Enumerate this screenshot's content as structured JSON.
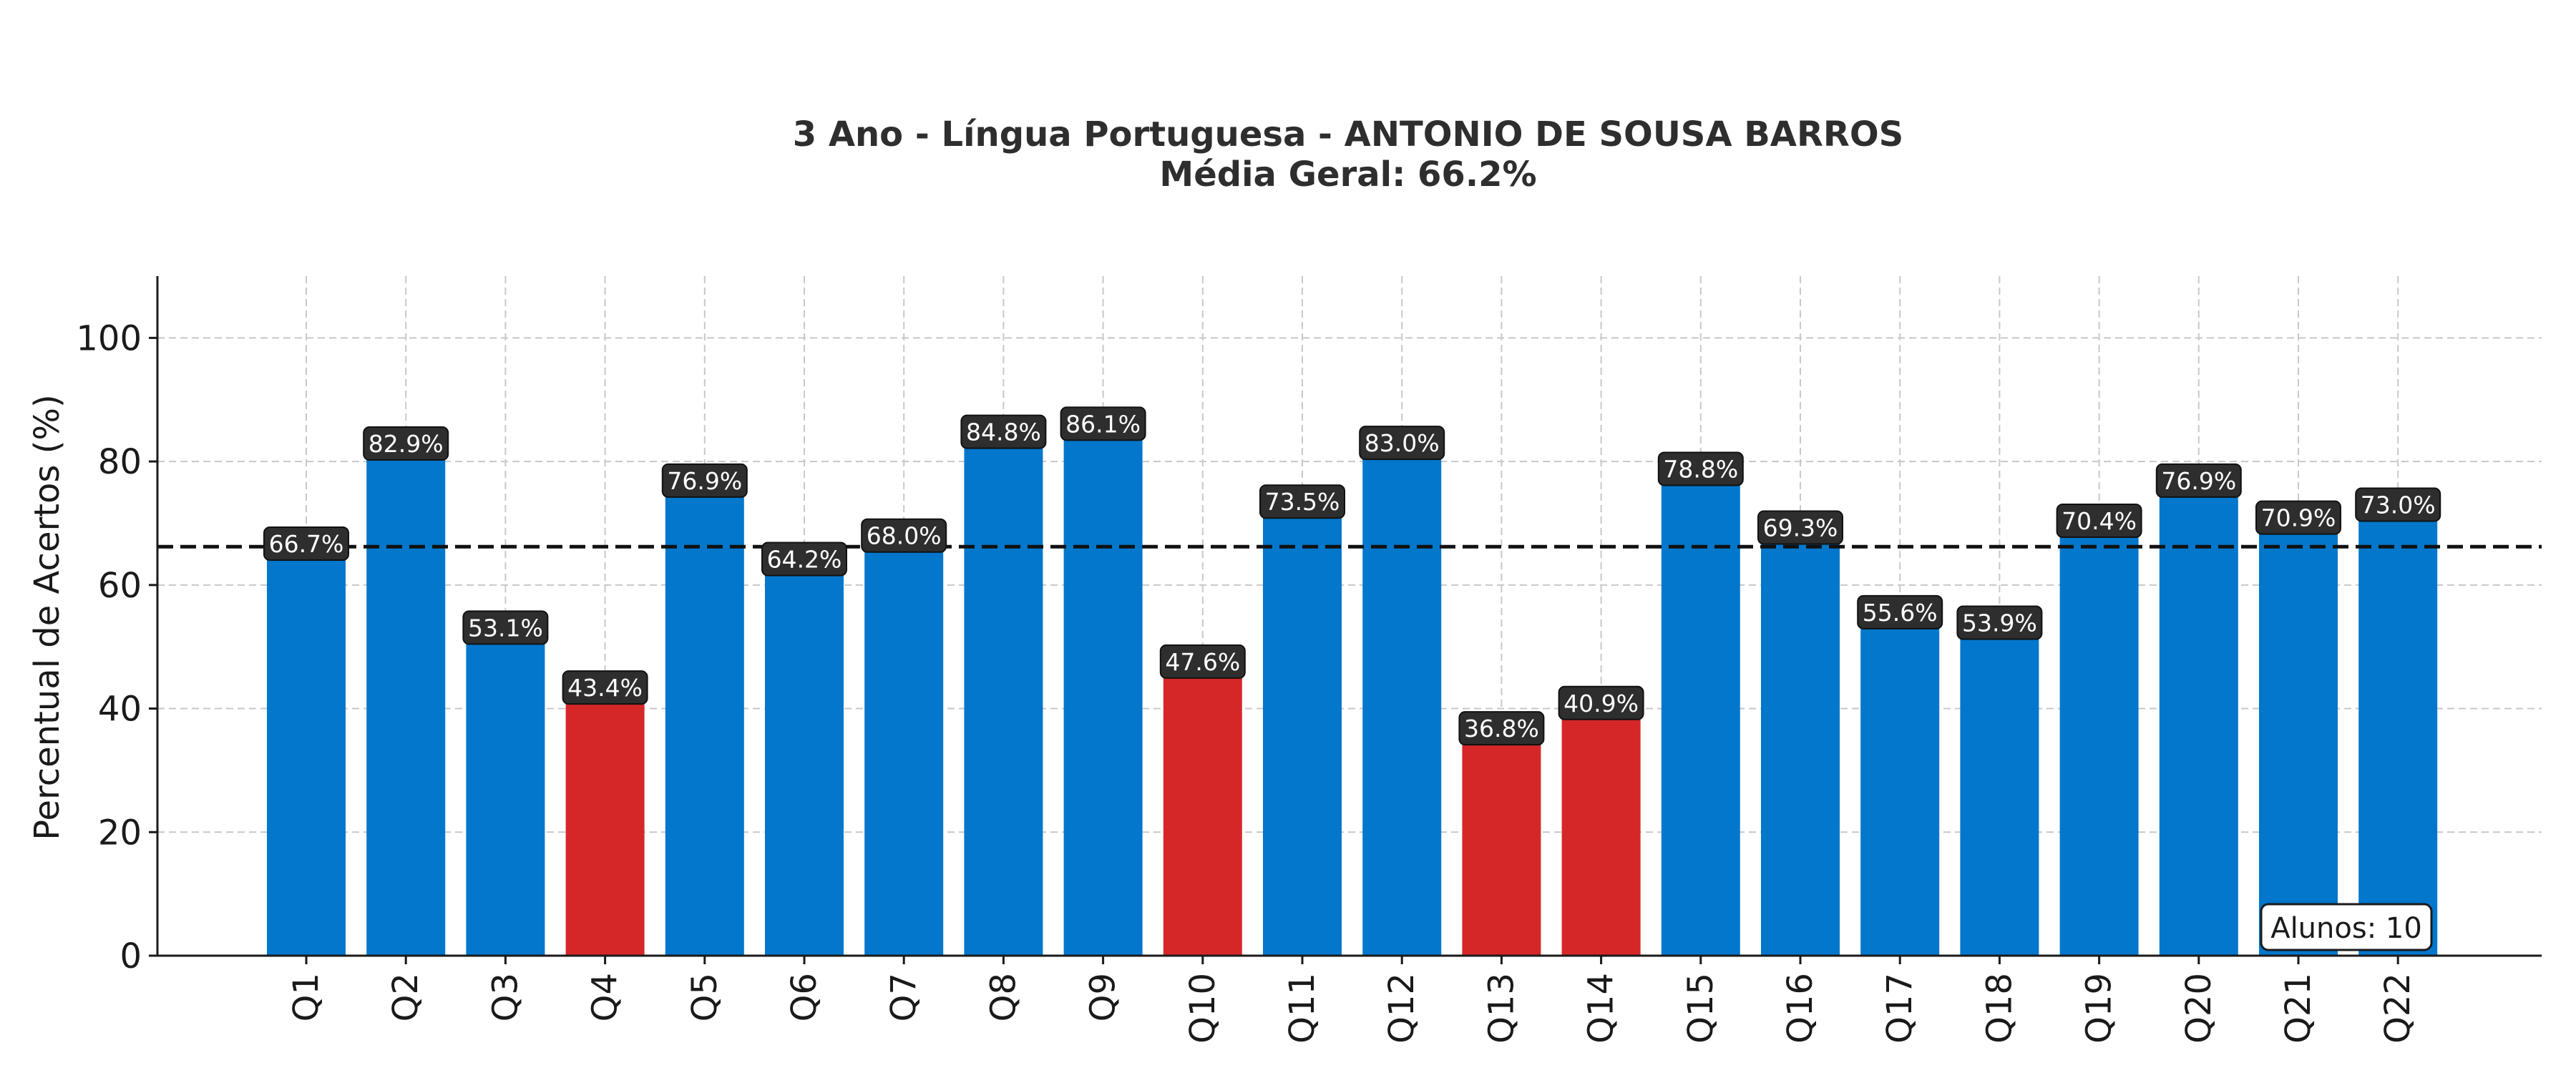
{
  "chart_data": {
    "type": "bar",
    "title": "3 Ano - Língua Portuguesa - ANTONIO DE SOUSA BARROS",
    "subtitle": "Média Geral: 66.2%",
    "xlabel": "",
    "ylabel": "Percentual de Acertos (%)",
    "ylim": [
      0,
      110
    ],
    "yticks": [
      0,
      20,
      40,
      60,
      80,
      100
    ],
    "grid": true,
    "categories": [
      "Q1",
      "Q2",
      "Q3",
      "Q4",
      "Q5",
      "Q6",
      "Q7",
      "Q8",
      "Q9",
      "Q10",
      "Q11",
      "Q12",
      "Q13",
      "Q14",
      "Q15",
      "Q16",
      "Q17",
      "Q18",
      "Q19",
      "Q20",
      "Q21",
      "Q22"
    ],
    "values": [
      66.7,
      82.9,
      53.1,
      43.4,
      76.9,
      64.2,
      68.0,
      84.8,
      86.1,
      47.6,
      73.5,
      83.0,
      36.8,
      40.9,
      78.8,
      69.3,
      55.6,
      53.9,
      70.4,
      76.9,
      70.9,
      73.0
    ],
    "value_labels": [
      "66.7%",
      "82.9%",
      "53.1%",
      "43.4%",
      "76.9%",
      "64.2%",
      "68.0%",
      "84.8%",
      "86.1%",
      "47.6%",
      "73.5%",
      "83.0%",
      "36.8%",
      "40.9%",
      "78.8%",
      "69.3%",
      "55.6%",
      "53.9%",
      "70.4%",
      "76.9%",
      "70.9%",
      "73.0%"
    ],
    "mean_line": 66.2,
    "threshold": 50,
    "colors": {
      "above_threshold": "#0277cc",
      "below_threshold": "#d62728",
      "mean_line": "#111111",
      "label_box": "#2e2e2e",
      "grid": "#c8c8c8"
    },
    "annotation": "Alunos: 10"
  }
}
